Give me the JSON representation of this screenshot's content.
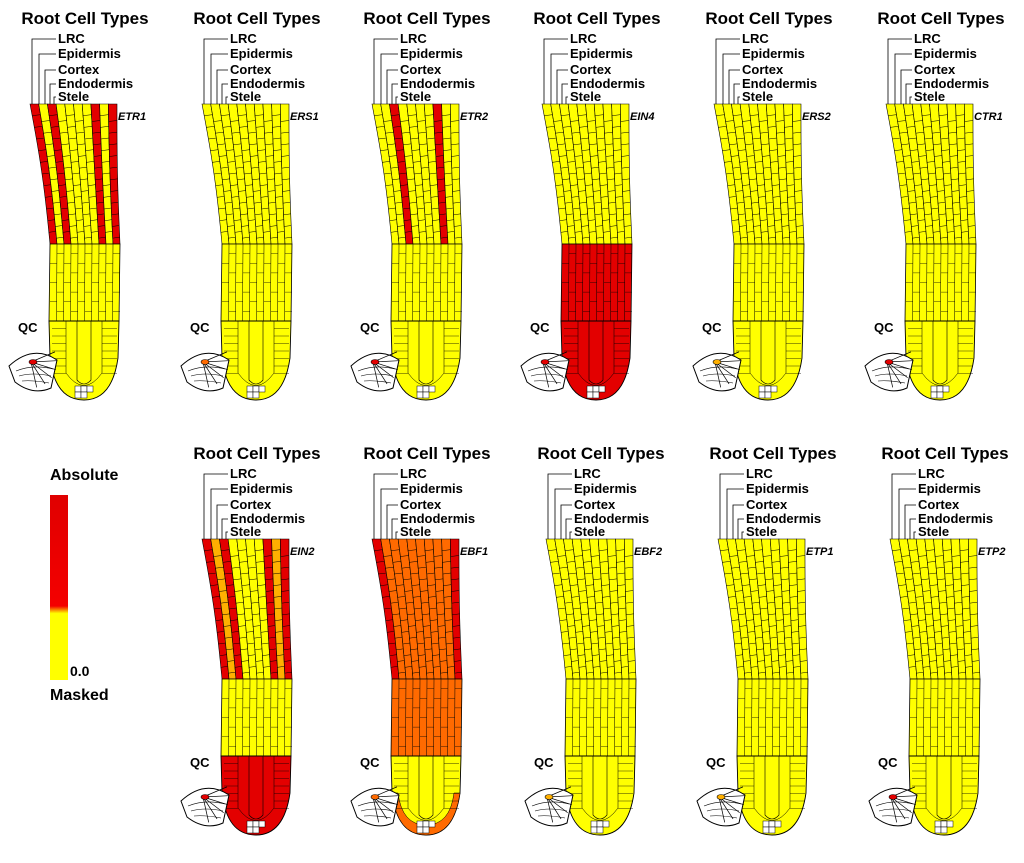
{
  "title": "Root Cell Types",
  "cell_types": [
    "LRC",
    "Epidermis",
    "Cortex",
    "Endodermis",
    "Stele"
  ],
  "qc_label": "QC",
  "legend": {
    "top": "Absolute",
    "zero": "0.0",
    "bottom": "Masked"
  },
  "colors": {
    "none": "#ffff00",
    "high": "#e30000",
    "mid": "#ff6a00",
    "light": "#ffb000",
    "outline": "#000000"
  },
  "panels": [
    {
      "gene": "ETR1",
      "upper": [
        "red",
        "yellow",
        "red",
        "yellow",
        "yellow"
      ],
      "mid": "yellow",
      "tip": "yellow",
      "qc": "red"
    },
    {
      "gene": "ERS1",
      "upper": [
        "yellow",
        "yellow",
        "yellow",
        "yellow",
        "yellow"
      ],
      "mid": "yellow",
      "tip": "yellow",
      "qc": "mid"
    },
    {
      "gene": "ETR2",
      "upper": [
        "yellow",
        "yellow",
        "red",
        "yellow",
        "yellow"
      ],
      "mid": "yellow",
      "tip": "yellow",
      "qc": "red"
    },
    {
      "gene": "EIN4",
      "upper": [
        "yellow",
        "yellow",
        "yellow",
        "yellow",
        "yellow"
      ],
      "mid": "red",
      "tip": "red",
      "qc": "red"
    },
    {
      "gene": "ERS2",
      "upper": [
        "yellow",
        "yellow",
        "yellow",
        "yellow",
        "yellow"
      ],
      "mid": "yellow",
      "tip": "yellow",
      "qc": "light"
    },
    {
      "gene": "CTR1",
      "upper": [
        "yellow",
        "yellow",
        "yellow",
        "yellow",
        "yellow"
      ],
      "mid": "yellow",
      "tip": "yellow",
      "qc": "red"
    },
    {
      "gene": "EIN2",
      "upper": [
        "red",
        "light",
        "red",
        "yellow",
        "yellow"
      ],
      "mid": "yellow",
      "tip": "red",
      "qc": "red"
    },
    {
      "gene": "EBF1",
      "upper": [
        "red",
        "mid",
        "mid",
        "mid",
        "mid"
      ],
      "mid": "mid",
      "tip": "yellowmid",
      "qc": "mid"
    },
    {
      "gene": "EBF2",
      "upper": [
        "yellow",
        "yellow",
        "yellow",
        "yellow",
        "yellow"
      ],
      "mid": "yellow",
      "tip": "yellow",
      "qc": "light"
    },
    {
      "gene": "ETP1",
      "upper": [
        "yellow",
        "yellow",
        "yellow",
        "yellow",
        "yellow"
      ],
      "mid": "yellow",
      "tip": "yellow",
      "qc": "light"
    },
    {
      "gene": "ETP2",
      "upper": [
        "yellow",
        "yellow",
        "yellow",
        "yellow",
        "yellow"
      ],
      "mid": "yellow",
      "tip": "yellow",
      "qc": "red"
    }
  ]
}
